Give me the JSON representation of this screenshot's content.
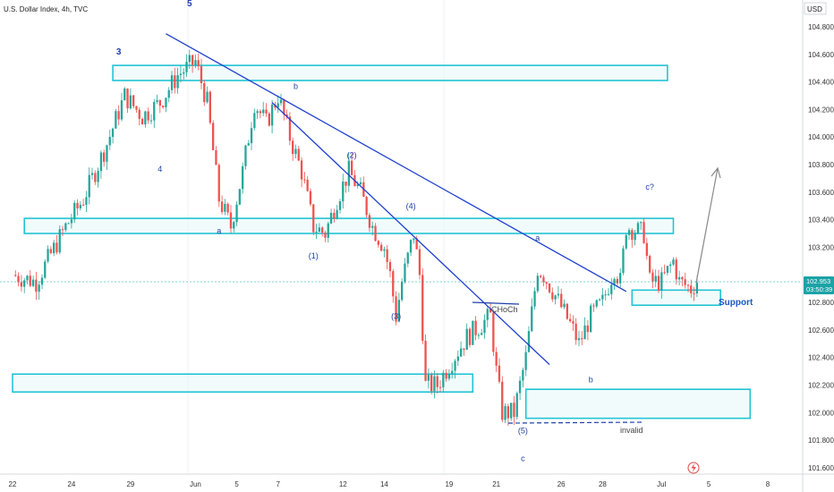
{
  "header": {
    "title": "U.S. Dollar Index, 4h, TVC"
  },
  "price_axis": {
    "currency": "USD"
  },
  "last_price": {
    "value": "102.953",
    "countdown": "03:50:39"
  },
  "chart_data": {
    "type": "candlestick",
    "title": "U.S. Dollar Index, 4h, TVC",
    "xlabel": "",
    "ylabel": "",
    "ylim": [
      101.5,
      104.9
    ],
    "yticks": [
      "104.800",
      "104.600",
      "104.400",
      "104.200",
      "104.000",
      "103.800",
      "103.600",
      "103.400",
      "103.200",
      "103.000",
      "102.800",
      "102.600",
      "102.400",
      "102.200",
      "102.000",
      "101.800",
      "101.600"
    ],
    "xticks": [
      "22",
      "24",
      "29",
      "Jun",
      "5",
      "7",
      "12",
      "14",
      "19",
      "21",
      "26",
      "28",
      "Jul",
      "5",
      "8"
    ],
    "x_range": [
      0,
      128
    ],
    "xtick_positions": [
      0,
      10,
      20,
      31,
      38,
      45,
      56,
      63,
      74,
      82,
      93,
      100,
      110,
      118,
      128
    ],
    "ohlc_waypoints": [
      [
        0,
        103.0
      ],
      [
        4,
        102.95
      ],
      [
        9,
        103.35
      ],
      [
        12,
        103.55
      ],
      [
        16,
        103.95
      ],
      [
        19,
        104.3
      ],
      [
        22,
        104.15
      ],
      [
        25,
        104.25
      ],
      [
        28,
        104.45
      ],
      [
        31,
        104.55
      ],
      [
        33,
        104.25
      ],
      [
        35,
        103.55
      ],
      [
        37,
        103.35
      ],
      [
        39,
        103.75
      ],
      [
        41,
        104.25
      ],
      [
        43,
        104.1
      ],
      [
        45,
        104.3
      ],
      [
        47,
        104.0
      ],
      [
        49,
        103.75
      ],
      [
        51,
        103.35
      ],
      [
        53,
        103.3
      ],
      [
        55,
        103.55
      ],
      [
        57,
        103.75
      ],
      [
        59,
        103.6
      ],
      [
        61,
        103.35
      ],
      [
        63,
        103.2
      ],
      [
        64,
        103.0
      ],
      [
        65,
        102.7
      ],
      [
        66,
        102.95
      ],
      [
        68,
        103.3
      ],
      [
        69,
        103.0
      ],
      [
        70,
        102.2
      ],
      [
        72,
        102.2
      ],
      [
        74,
        102.35
      ],
      [
        77,
        102.55
      ],
      [
        81,
        102.7
      ],
      [
        82,
        102.3
      ],
      [
        83,
        102.0
      ],
      [
        85,
        102.0
      ],
      [
        87,
        102.4
      ],
      [
        89,
        103.05
      ],
      [
        90,
        103.0
      ],
      [
        92,
        102.85
      ],
      [
        95,
        102.6
      ],
      [
        96,
        102.5
      ],
      [
        98,
        102.7
      ],
      [
        100,
        102.8
      ],
      [
        102,
        103.05
      ],
      [
        103,
        102.95
      ],
      [
        104,
        103.35
      ],
      [
        107,
        103.3
      ],
      [
        108,
        102.95
      ],
      [
        110,
        102.95
      ],
      [
        112,
        103.1
      ],
      [
        113,
        102.95
      ],
      [
        115,
        102.9
      ],
      [
        116,
        102.96
      ]
    ],
    "zones": [
      {
        "from_x": 17,
        "to_x": 111,
        "low": 104.41,
        "high": 104.52
      },
      {
        "from_x": 2,
        "to_x": 112,
        "low": 103.3,
        "high": 103.41
      },
      {
        "from_x": 0,
        "to_x": 78,
        "low": 102.15,
        "high": 102.28
      },
      {
        "from_x": 87,
        "to_x": 125,
        "low": 101.96,
        "high": 102.17
      },
      {
        "from_x": 105,
        "to_x": 120,
        "low": 102.78,
        "high": 102.89
      }
    ],
    "trendlines": [
      {
        "x1": 26,
        "y1": 104.75,
        "x2": 104,
        "y2": 102.88
      },
      {
        "x1": 44,
        "y1": 104.25,
        "x2": 91,
        "y2": 102.35
      }
    ],
    "annotations": {
      "wave_labels": [
        {
          "text": "5",
          "x": 30,
          "y": 104.95,
          "big": true
        },
        {
          "text": "3",
          "x": 18,
          "y": 104.6,
          "big": true
        },
        {
          "text": "4",
          "x": 25,
          "y": 103.75
        },
        {
          "text": "b",
          "x": 48,
          "y": 104.35
        },
        {
          "text": "a",
          "x": 35,
          "y": 103.3
        },
        {
          "text": "(2)",
          "x": 57.5,
          "y": 103.85
        },
        {
          "text": "(4)",
          "x": 67.5,
          "y": 103.48
        },
        {
          "text": "(1)",
          "x": 51,
          "y": 103.12
        },
        {
          "text": "(3)",
          "x": 65,
          "y": 102.68
        },
        {
          "text": "a",
          "x": 89,
          "y": 103.25
        },
        {
          "text": "c?",
          "x": 108,
          "y": 103.62
        },
        {
          "text": "b",
          "x": 98,
          "y": 102.22
        },
        {
          "text": "(5)",
          "x": 86.5,
          "y": 101.85
        },
        {
          "text": "c",
          "x": 86.5,
          "y": 101.65
        }
      ],
      "choch_label": "CHoCh",
      "invalid_label": "invalid",
      "support_label": "Support"
    }
  }
}
